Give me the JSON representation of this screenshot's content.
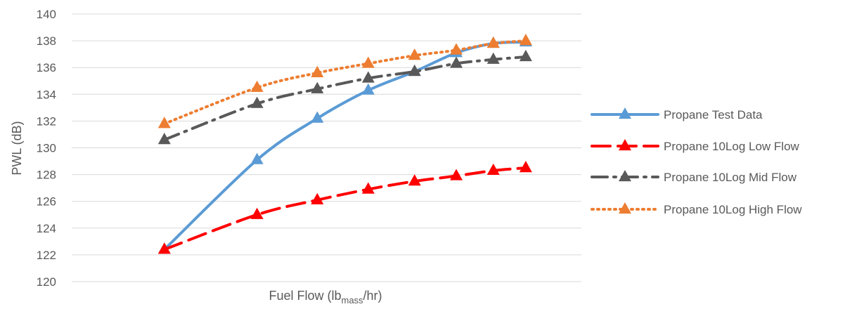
{
  "chart_data": {
    "type": "line",
    "xlabel": {
      "base": "Fuel Flow (lb",
      "sub": "mass",
      "suffix": "/hr)"
    },
    "ylabel": "PWL (dB)",
    "ylim": [
      120,
      140
    ],
    "yticks": [
      "120",
      "122",
      "124",
      "126",
      "128",
      "130",
      "132",
      "134",
      "136",
      "138",
      "140"
    ],
    "x_ticks_shown": false,
    "grid": "horizontal",
    "legend_position": "right",
    "series": [
      {
        "name": "Propane Test Data",
        "color": "#5b9bd5",
        "dash": "solid",
        "x": [
          2,
          4,
          5.3,
          6.4,
          7.4,
          8.3,
          9.1,
          9.8
        ],
        "values": [
          122.4,
          129.1,
          132.2,
          134.3,
          135.7,
          137.1,
          137.8,
          137.9
        ]
      },
      {
        "name": "Propane 10Log Low Flow",
        "color": "#ff0000",
        "dash": "long-dash",
        "x": [
          2,
          4,
          5.3,
          6.4,
          7.4,
          8.3,
          9.1,
          9.8
        ],
        "values": [
          122.4,
          125.0,
          126.1,
          126.9,
          127.5,
          127.9,
          128.3,
          128.5
        ]
      },
      {
        "name": "Propane 10Log Mid Flow",
        "color": "#595959",
        "dash": "dash-dot",
        "x": [
          2,
          4,
          5.3,
          6.4,
          7.4,
          8.3,
          9.1,
          9.8
        ],
        "values": [
          130.6,
          133.3,
          134.4,
          135.2,
          135.7,
          136.3,
          136.6,
          136.8
        ]
      },
      {
        "name": "Propane 10Log High Flow",
        "color": "#ed7d31",
        "dash": "dotted",
        "x": [
          2,
          4,
          5.3,
          6.4,
          7.4,
          8.3,
          9.1,
          9.8
        ],
        "values": [
          131.8,
          134.5,
          135.6,
          136.3,
          136.9,
          137.3,
          137.8,
          138.0
        ]
      }
    ]
  }
}
